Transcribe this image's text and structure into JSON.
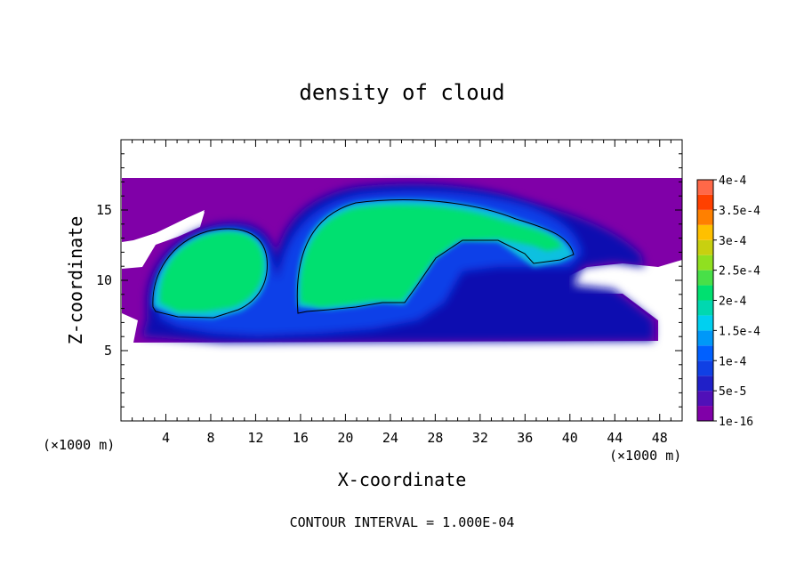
{
  "chart_data": {
    "type": "heatmap",
    "title": "density of cloud",
    "xlabel": "X-coordinate",
    "ylabel": "Z-coordinate",
    "x_unit": "(×1000 m)",
    "x_unit_right": "(×1000 m)",
    "xlim": [
      0,
      50
    ],
    "ylim": [
      0,
      20
    ],
    "x_ticks": [
      4,
      8,
      12,
      16,
      20,
      24,
      28,
      32,
      36,
      40,
      44,
      48
    ],
    "y_ticks": [
      5,
      10,
      15
    ],
    "footer": "CONTOUR INTERVAL = 1.000E-04",
    "colorbar": {
      "levels": [
        "1e-16",
        "5e-5",
        "1e-4",
        "1.5e-4",
        "2e-4",
        "2.5e-4",
        "3e-4",
        "3.5e-4",
        "4e-4"
      ],
      "colors": [
        "#8000a8",
        "#2020c8",
        "#0060ff",
        "#00d0f0",
        "#00e070",
        "#90e020",
        "#ffc000",
        "#ff4000",
        "#ff9090"
      ]
    },
    "cloud_regions": [
      {
        "name": "background cloud layer",
        "x": [
          0,
          50
        ],
        "z": [
          5.5,
          17.5
        ],
        "max_level": "5e-5"
      },
      {
        "name": "left cell core",
        "x": [
          3,
          13
        ],
        "z": [
          7.5,
          13.8
        ],
        "max_level": "1.5e-4"
      },
      {
        "name": "central cell core",
        "x": [
          15.5,
          40
        ],
        "z": [
          7,
          15.5
        ],
        "max_level": "2e-4"
      }
    ]
  }
}
